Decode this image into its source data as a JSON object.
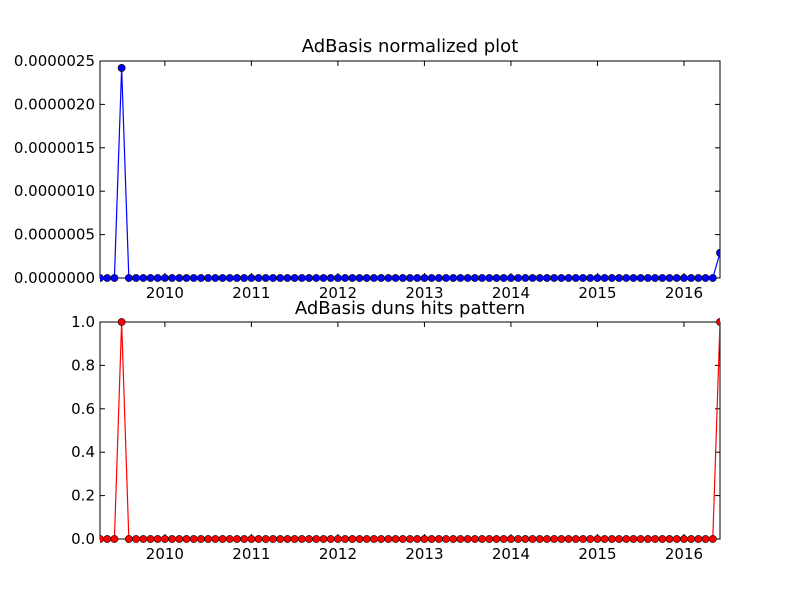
{
  "chart_data": [
    {
      "type": "line",
      "title": "AdBasis normalized plot",
      "xlabel": "",
      "ylabel": "",
      "x_range": [
        "2009-04",
        "2016-06"
      ],
      "ylim": [
        0,
        2.5e-06
      ],
      "x_ticks": [
        "2010",
        "2011",
        "2012",
        "2013",
        "2014",
        "2015",
        "2016"
      ],
      "y_ticks": [
        "0.0000000",
        "0.0000005",
        "0.0000010",
        "0.0000015",
        "0.0000020",
        "0.0000025"
      ],
      "y_tick_values": [
        0,
        5e-07,
        1e-06,
        1.5e-06,
        2e-06,
        2.5e-06
      ],
      "line_color": "#0000ff",
      "marker_color": "#0000ff",
      "grid": false,
      "x_start": "2009-04",
      "spikes": [
        {
          "x": "2009-07",
          "y": 2.42e-06
        },
        {
          "x": "2016-06",
          "y": 2.9e-07
        }
      ],
      "baseline_y": 0
    },
    {
      "type": "line",
      "title": "AdBasis duns hits pattern",
      "xlabel": "",
      "ylabel": "",
      "x_range": [
        "2009-04",
        "2016-06"
      ],
      "ylim": [
        0,
        1
      ],
      "x_ticks": [
        "2010",
        "2011",
        "2012",
        "2013",
        "2014",
        "2015",
        "2016"
      ],
      "y_ticks": [
        "0.0",
        "0.2",
        "0.4",
        "0.6",
        "0.8",
        "1.0"
      ],
      "y_tick_values": [
        0,
        0.2,
        0.4,
        0.6,
        0.8,
        1.0
      ],
      "line_color": "#ff0000",
      "marker_color": "#ff0000",
      "grid": false,
      "x_start": "2009-04",
      "spikes": [
        {
          "x": "2009-07",
          "y": 1
        },
        {
          "x": "2016-06",
          "y": 1
        }
      ],
      "baseline_y": 0
    }
  ]
}
